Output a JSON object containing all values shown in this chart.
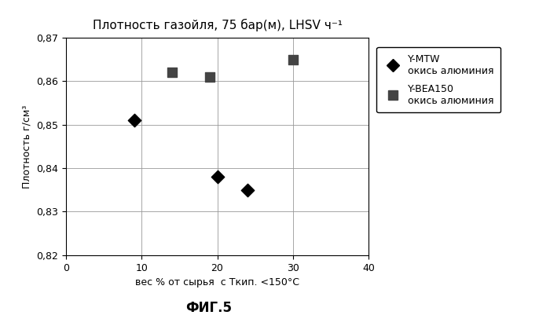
{
  "title": "Плотность газойля, 75 бар(м), LHSV ч⁻¹",
  "xlabel": "вес % от сырья  с Ткип. <150°С",
  "ylabel": "Плотность г/см³",
  "fig_label": "ФИГ.5",
  "xlim": [
    0,
    40
  ],
  "ylim": [
    0.82,
    0.87
  ],
  "xticks": [
    0,
    10,
    20,
    30,
    40
  ],
  "yticks": [
    0.82,
    0.83,
    0.84,
    0.85,
    0.86,
    0.87
  ],
  "series1_name_line1": "Y-MTW",
  "series1_name_line2": "окись алюминия",
  "series1_x": [
    9,
    20,
    24
  ],
  "series1_y": [
    0.851,
    0.838,
    0.835
  ],
  "series1_color": "#000000",
  "series1_marker": "D",
  "series2_name_line1": "Y-BEA150",
  "series2_name_line2": "окись алюминия",
  "series2_x": [
    14,
    19,
    30
  ],
  "series2_y": [
    0.862,
    0.861,
    0.865
  ],
  "series2_color": "#444444",
  "series2_marker": "s",
  "background": "#ffffff",
  "grid_color": "#999999",
  "title_fontsize": 11,
  "axis_label_fontsize": 9,
  "tick_fontsize": 9,
  "legend_fontsize": 9,
  "fig_label_fontsize": 12
}
